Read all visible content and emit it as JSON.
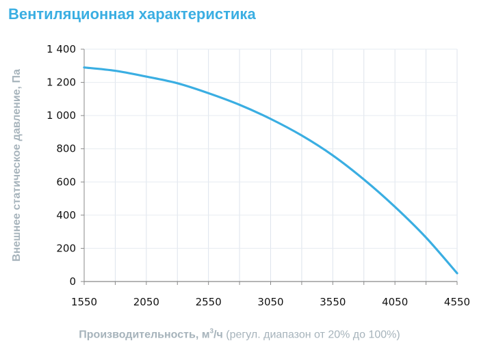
{
  "chart_data": {
    "type": "line",
    "title": "Вентиляционная характеристика",
    "xlabel_bold": "Производительность, м",
    "xlabel_sup": "3",
    "xlabel_unit": "/ч",
    "xlabel_rest": " (регул. диапазон от 20% до 100%)",
    "ylabel": "Внешнее статическое давление, Па",
    "xlim": [
      1550,
      4550
    ],
    "ylim": [
      0,
      1400
    ],
    "xticks": [
      1550,
      2050,
      2550,
      3050,
      3550,
      4050,
      4550
    ],
    "xtick_labels": [
      "1550",
      "2050",
      "2550",
      "3050",
      "3550",
      "4050",
      "4550"
    ],
    "xgrid_step": 250,
    "yticks": [
      0,
      200,
      400,
      600,
      800,
      1000,
      1200,
      1400
    ],
    "ytick_labels": [
      "0",
      "200",
      "400",
      "600",
      "800",
      "1 000",
      "1 200",
      "1 400"
    ],
    "grid": true,
    "series": [
      {
        "color": "#3aaee2",
        "x": [
          1550,
          1800,
          2050,
          2300,
          2550,
          2800,
          3050,
          3300,
          3550,
          3800,
          4050,
          4300,
          4550
        ],
        "y": [
          1290,
          1270,
          1235,
          1195,
          1135,
          1065,
          980,
          880,
          760,
          615,
          450,
          265,
          50
        ]
      }
    ]
  }
}
